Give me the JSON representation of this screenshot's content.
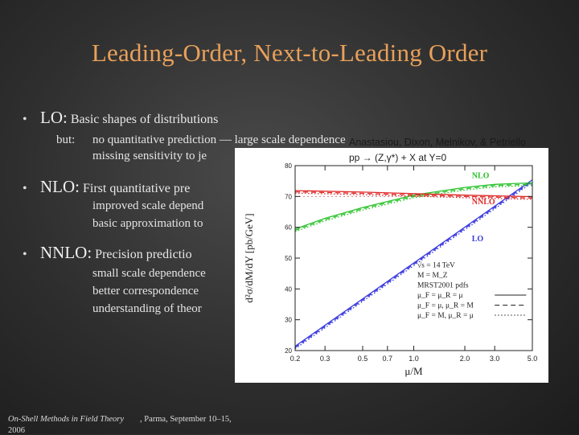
{
  "slide": {
    "title": "Leading-Order, Next-to-Leading Order",
    "bullets": [
      {
        "head": "LO:",
        "text": "Basic shapes of distributions"
      },
      {
        "head": "NLO:",
        "text": "First quantitative pre"
      },
      {
        "head": "NNLO:",
        "text": "Precision predictio"
      }
    ],
    "lo_sub": {
      "prefix": "but:",
      "line1": "no quantitative prediction — large scale dependence",
      "line2": "missing sensitivity to je"
    },
    "nlo_sub": [
      "improved scale depend",
      "basic approximation to"
    ],
    "nnlo_sub": [
      "small scale dependence",
      "better correspondence",
      "understanding of theor"
    ],
    "bullet_symbol": "•",
    "footer": {
      "left_line1": "On-Shell Methods in Field Theory",
      "left_line2": "2006",
      "right": ", Parma, September 10–15,"
    }
  },
  "chart_data": {
    "type": "line",
    "citation": "Anastasiou, Dixon, Melnikov, & Petriello",
    "title": "pp → (Z,γ*) + X at Y=0",
    "xlabel": "μ/M",
    "ylabel": "d²σ/dM/dY [pb/GeV]",
    "xscale": "log",
    "xlim": [
      0.2,
      5.0
    ],
    "ylim": [
      20,
      80
    ],
    "xticks": [
      0.2,
      0.3,
      0.5,
      0.7,
      1.0,
      2.0,
      3.0,
      5.0
    ],
    "xticklabels": [
      "0.2",
      "0.3",
      "0.5",
      "0.7",
      "1.0",
      "2.0",
      "3.0",
      "5.0"
    ],
    "yticks": [
      20,
      30,
      40,
      50,
      60,
      70,
      80
    ],
    "yticklabels": [
      "20",
      "30",
      "40",
      "50",
      "60",
      "70",
      "80"
    ],
    "series": [
      {
        "name": "LO",
        "color": "#3a3adf",
        "x": [
          0.2,
          5.0
        ],
        "y": [
          21,
          75
        ]
      },
      {
        "name": "NLO",
        "color": "#2bc22b",
        "x": [
          0.2,
          0.3,
          0.5,
          1.0,
          2.0,
          3.0,
          5.0
        ],
        "y": [
          59,
          62.5,
          66,
          70,
          72.5,
          73.5,
          74
        ]
      },
      {
        "name": "NNLO",
        "color": "#e02828",
        "x": [
          0.2,
          0.5,
          1.0,
          2.0,
          5.0
        ],
        "y": [
          71.5,
          71,
          70.5,
          70,
          69.5
        ]
      }
    ],
    "series_labels": [
      {
        "name": "NLO",
        "color": "#2bc22b",
        "x": 2.2,
        "y": 76
      },
      {
        "name": "NNLO",
        "color": "#e02828",
        "x": 2.2,
        "y": 67.5
      },
      {
        "name": "LO",
        "color": "#3a3adf",
        "x": 2.2,
        "y": 55.5
      }
    ],
    "annotation": [
      "√s = 14 TeV",
      "M = M_Z",
      "MRST2001 pdfs",
      "μ_F = μ_R = μ",
      "μ_F = μ, μ_R = M",
      "μ_F = M, μ_R = μ"
    ],
    "legend_styles": [
      "solid",
      "dashed",
      "dotted"
    ]
  }
}
